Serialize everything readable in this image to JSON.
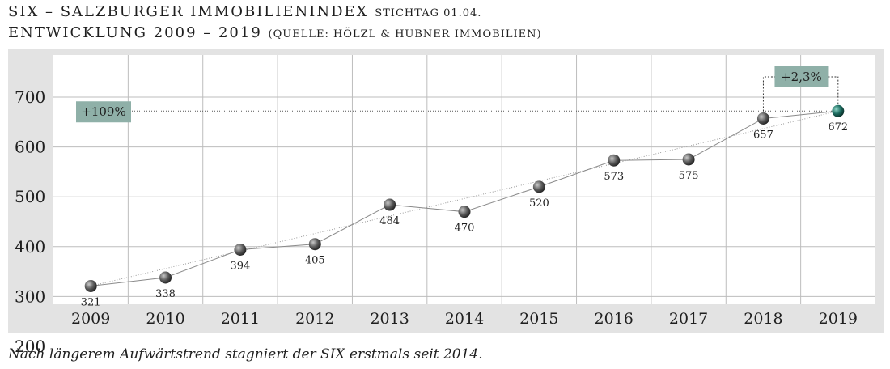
{
  "header": {
    "line1_main": "SIX – SALZBURGER IMMOBILIENINDEX",
    "line1_small": "STICHTAG 01.04.",
    "line2_main": "ENTWICKLUNG 2009 – 2019",
    "line2_small": "(QUELLE: HÖLZL & HUBNER IMMOBILIEN)"
  },
  "caption": "Nach längerem Aufwärtstrend stagniert der SIX erstmals seit 2014.",
  "colors": {
    "panel": "#e3e3e3",
    "plot": "#ffffff",
    "grid": "#bdbdbd",
    "point": "#5a5a5a",
    "highlight_point": "#1c6b5f",
    "badge": "#8fb0a8",
    "line": "#8a8a8a"
  },
  "chart_data": {
    "type": "line",
    "x": [
      "2009",
      "2010",
      "2011",
      "2012",
      "2013",
      "2014",
      "2015",
      "2016",
      "2017",
      "2018",
      "2019"
    ],
    "series": [
      {
        "values": [
          321,
          338,
          394,
          405,
          484,
          470,
          520,
          573,
          575,
          657,
          672
        ]
      }
    ],
    "data_labels": [
      "321",
      "338",
      "394",
      "405",
      "484",
      "470",
      "520",
      "573",
      "575",
      "657",
      "672"
    ],
    "yticks": [
      200,
      300,
      400,
      500,
      600,
      700
    ],
    "ytick_labels": [
      "200",
      "300",
      "400",
      "500",
      "600",
      "700"
    ],
    "ylim": [
      200,
      750
    ],
    "grid": true,
    "annotations": [
      {
        "text": "+109%",
        "from": "2009",
        "to": "2019"
      },
      {
        "text": "+2,3%",
        "from": "2018",
        "to": "2019"
      }
    ]
  }
}
